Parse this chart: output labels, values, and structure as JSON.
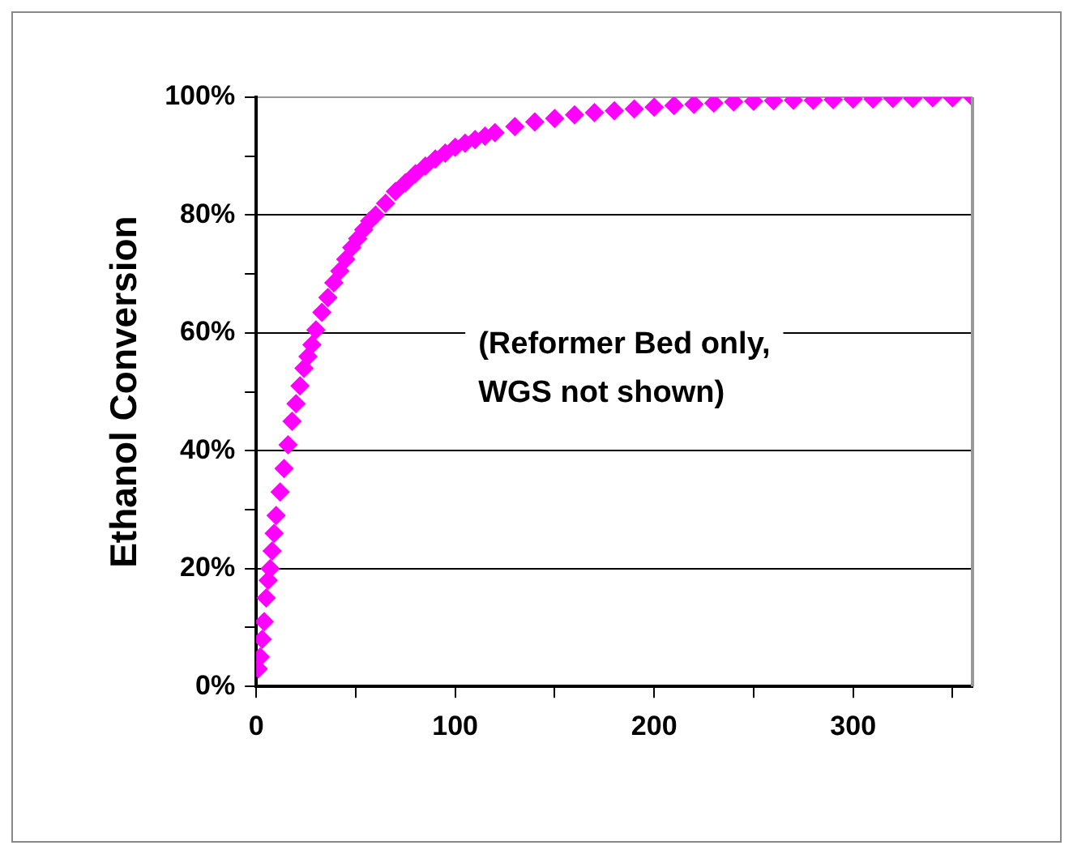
{
  "chart_data": {
    "type": "scatter",
    "ylabel": "Ethanol Conversion",
    "annotations": [
      "(Reformer Bed only,\nWGS not shown)"
    ],
    "x": [
      1,
      2,
      3,
      4,
      5,
      6,
      7,
      8,
      9,
      10,
      12,
      14,
      16,
      18,
      20,
      22,
      24,
      26,
      28,
      30,
      33,
      36,
      39,
      42,
      45,
      48,
      51,
      54,
      57,
      60,
      65,
      70,
      75,
      80,
      85,
      90,
      95,
      100,
      105,
      110,
      115,
      120,
      130,
      140,
      150,
      160,
      170,
      180,
      190,
      200,
      210,
      220,
      230,
      240,
      250,
      260,
      270,
      280,
      290,
      300,
      310,
      320,
      330,
      340,
      350,
      360
    ],
    "series": [
      {
        "color": "#ff00ff",
        "values": [
          3,
          5,
          8,
          11,
          15,
          18,
          20,
          23,
          26,
          29,
          33,
          37,
          41,
          45,
          48,
          51,
          54,
          56,
          58,
          60.5,
          63.5,
          66,
          68.5,
          70.5,
          72.5,
          74.5,
          76,
          77.5,
          79,
          80,
          82,
          84,
          85.5,
          87,
          88.3,
          89.5,
          90.5,
          91.5,
          92.2,
          92.8,
          93.4,
          94,
          95,
          95.8,
          96.4,
          97,
          97.4,
          97.7,
          98,
          98.3,
          98.6,
          98.8,
          99,
          99.2,
          99.3,
          99.4,
          99.5,
          99.5,
          99.6,
          99.7,
          99.7,
          99.8,
          99.8,
          99.9,
          99.9,
          100
        ]
      }
    ],
    "xlim": [
      0,
      360
    ],
    "xticks": [
      0,
      {
        "value": 50,
        "label": null
      },
      100,
      {
        "value": 150,
        "label": null
      },
      200,
      {
        "value": 250,
        "label": null
      },
      300,
      {
        "value": 350,
        "label": null
      }
    ],
    "ylim": [
      0,
      100
    ],
    "yticks": [
      {
        "value": 0,
        "label": "0%"
      },
      {
        "value": 10,
        "label": null
      },
      {
        "value": 20,
        "label": "20%"
      },
      {
        "value": 30,
        "label": null
      },
      {
        "value": 40,
        "label": "40%"
      },
      {
        "value": 50,
        "label": null
      },
      {
        "value": 60,
        "label": "60%"
      },
      {
        "value": 70,
        "label": null
      },
      {
        "value": 80,
        "label": "80%"
      },
      {
        "value": 90,
        "label": null
      },
      {
        "value": 100,
        "label": "100%"
      }
    ],
    "grid": "y",
    "legend": false,
    "marker": "diamond"
  }
}
